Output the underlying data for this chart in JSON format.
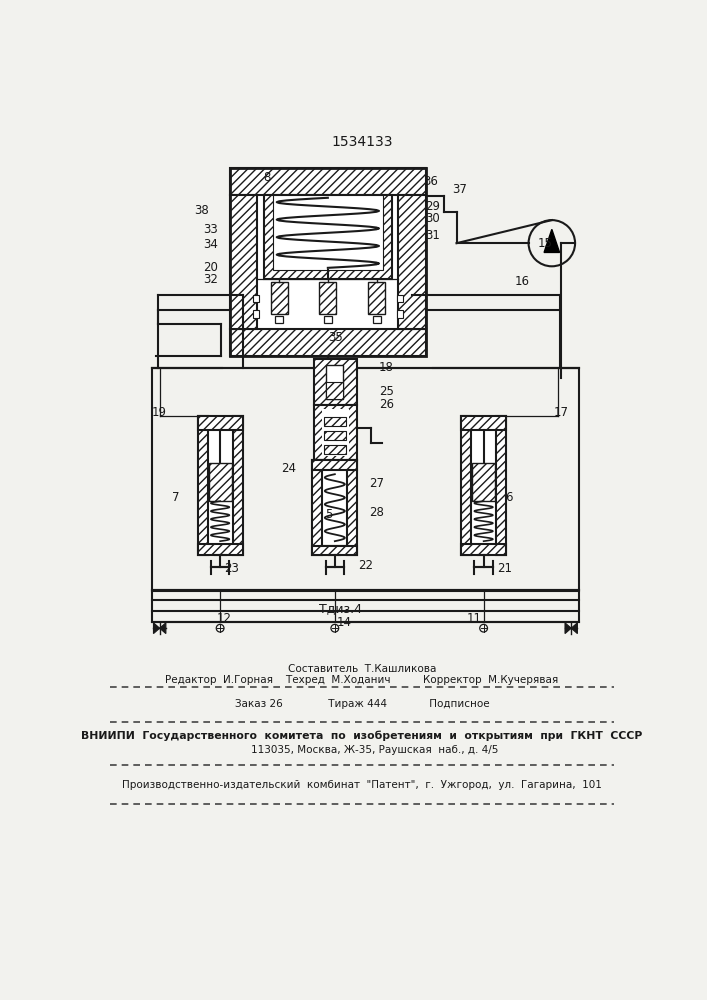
{
  "patent_number": "1534133",
  "fig_label": "Τдиз.4",
  "bg_color": "#f2f2ee",
  "line_color": "#1a1a1a",
  "footer_lines": [
    "Составитель  Т.Кашликова",
    "Редактор  И.Горная    Техред  М.Ходанич          Корректор  М.Кучерявая",
    "Заказ 26              Тираж 444             Подписное",
    "ВНИИПИ  Государственного  комитета  по  изобретениям  и  открытиям  при  ГКНТ  СССР",
    "        113035, Москва, Ж-35, Раушская  наб., д. 4/5",
    "Производственно-издательский  комбинат  \"Патент\",  г.  Ужгород,  ул.  Гагарина,  101"
  ],
  "labels": [
    [
      225,
      925,
      "8",
      "left"
    ],
    [
      432,
      920,
      "36",
      "left"
    ],
    [
      470,
      910,
      "37",
      "left"
    ],
    [
      435,
      888,
      "29",
      "left"
    ],
    [
      435,
      872,
      "30",
      "left"
    ],
    [
      435,
      850,
      "31",
      "left"
    ],
    [
      167,
      858,
      "33",
      "right"
    ],
    [
      167,
      838,
      "34",
      "right"
    ],
    [
      167,
      808,
      "20",
      "right"
    ],
    [
      167,
      793,
      "32",
      "right"
    ],
    [
      310,
      718,
      "35",
      "left"
    ],
    [
      550,
      790,
      "16",
      "left"
    ],
    [
      82,
      620,
      "19",
      "left"
    ],
    [
      600,
      620,
      "17",
      "left"
    ],
    [
      375,
      678,
      "18",
      "left"
    ],
    [
      375,
      648,
      "25",
      "left"
    ],
    [
      375,
      630,
      "26",
      "left"
    ],
    [
      268,
      548,
      "24",
      "right"
    ],
    [
      305,
      488,
      "5",
      "left"
    ],
    [
      362,
      528,
      "27",
      "left"
    ],
    [
      362,
      490,
      "28",
      "left"
    ],
    [
      348,
      422,
      "22",
      "left"
    ],
    [
      175,
      418,
      "23",
      "left"
    ],
    [
      528,
      418,
      "21",
      "left"
    ],
    [
      108,
      510,
      "7",
      "left"
    ],
    [
      538,
      510,
      "6",
      "left"
    ],
    [
      165,
      352,
      "12",
      "left"
    ],
    [
      320,
      347,
      "14",
      "left"
    ],
    [
      488,
      352,
      "11",
      "left"
    ],
    [
      580,
      840,
      "15",
      "left"
    ],
    [
      155,
      882,
      "38",
      "right"
    ]
  ]
}
